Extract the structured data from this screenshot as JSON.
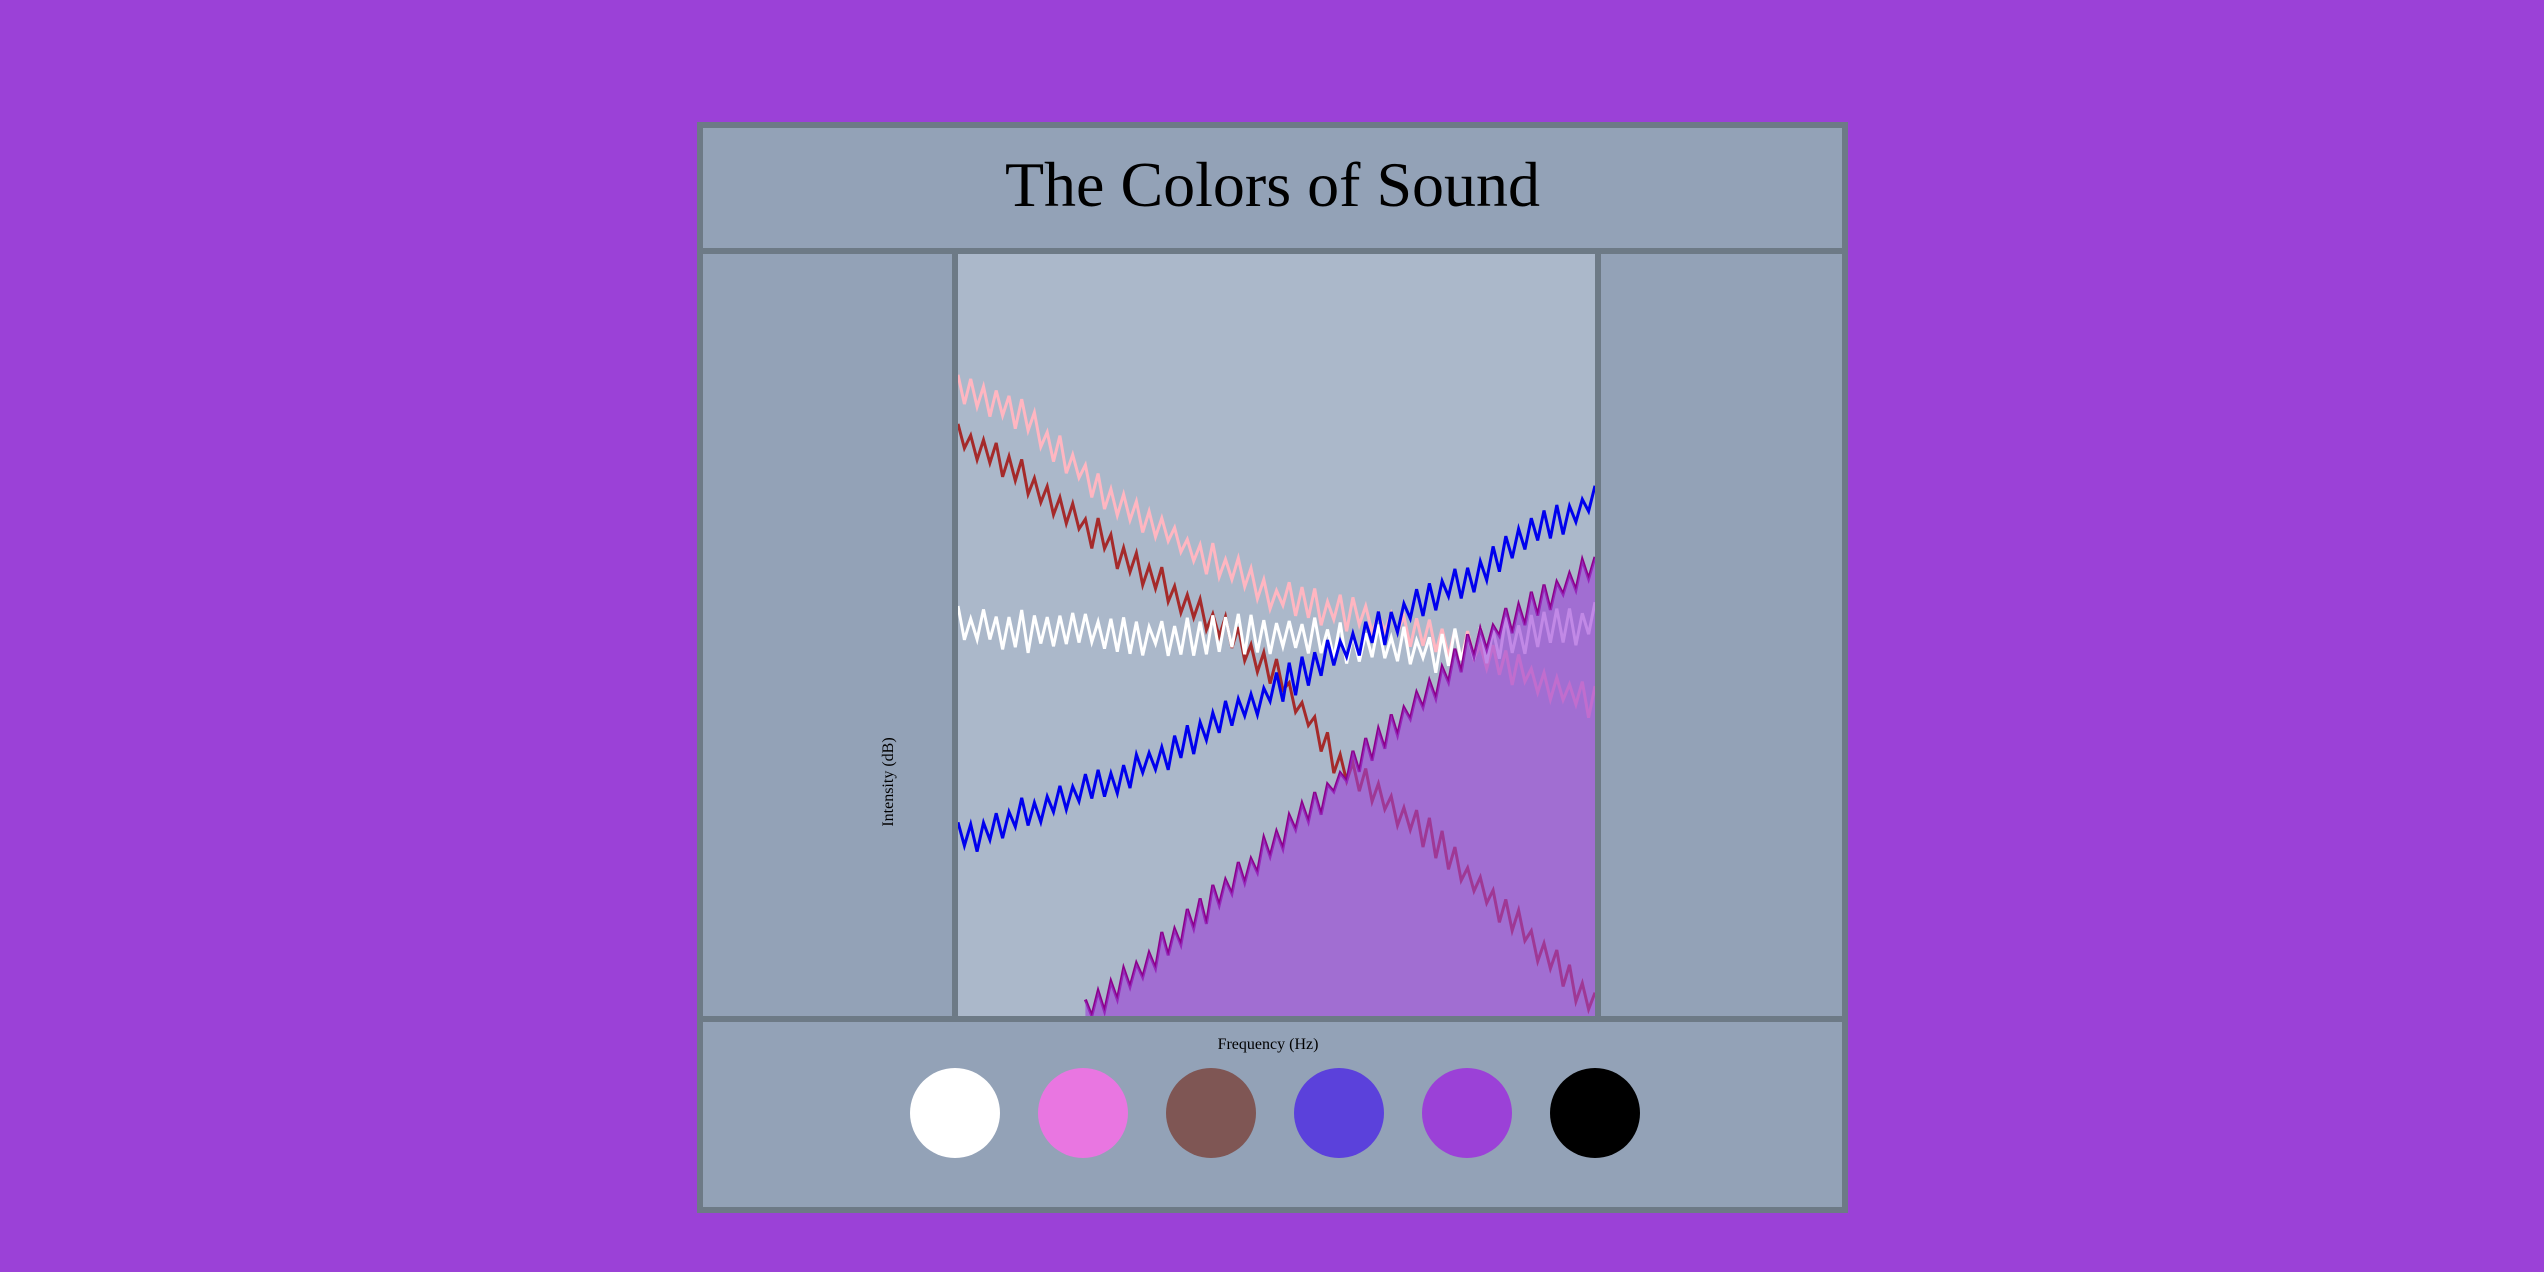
{
  "page": {
    "background": "#9b41d7",
    "title": "The Colors of Sound"
  },
  "chart_data": {
    "type": "line",
    "title": "The Colors of Sound",
    "xlabel": "Frequency (Hz)",
    "ylabel": "Intensity (dB)",
    "xlim": [
      0,
      100
    ],
    "ylim": [
      0,
      100
    ],
    "grid": false,
    "legend": "none",
    "series": [
      {
        "color": "#ffb6c1",
        "trend": [
          [
            0,
            83
          ],
          [
            10,
            79
          ],
          [
            25,
            67
          ],
          [
            50,
            55
          ],
          [
            75,
            50
          ],
          [
            100,
            41
          ]
        ],
        "jitter": 1.6,
        "seed": 3
      },
      {
        "color": "#a52a2a",
        "trend": [
          [
            0,
            76
          ],
          [
            10,
            71
          ],
          [
            25,
            61
          ],
          [
            50,
            45
          ],
          [
            60,
            33
          ],
          [
            75,
            23
          ],
          [
            100,
            1
          ]
        ],
        "jitter": 1.6,
        "seed": 7
      },
      {
        "color": "#ffffff",
        "trend": [
          [
            0,
            51
          ],
          [
            25,
            50
          ],
          [
            50,
            50
          ],
          [
            75,
            48
          ],
          [
            100,
            52
          ]
        ],
        "jitter": 2.0,
        "seed": 11
      },
      {
        "color": "#0000ee",
        "trend": [
          [
            0,
            23
          ],
          [
            25,
            31
          ],
          [
            50,
            43
          ],
          [
            75,
            55
          ],
          [
            100,
            68
          ]
        ],
        "jitter": 1.7,
        "seed": 17
      },
      {
        "color": "#8b008b",
        "trend": [
          [
            20,
            0
          ],
          [
            40,
            15
          ],
          [
            60,
            31
          ],
          [
            80,
            48
          ],
          [
            100,
            59
          ]
        ],
        "jitter": 1.5,
        "seed": 23,
        "fill": "#9b41d7",
        "fill_opacity": 0.62
      }
    ]
  },
  "legend_swatches": [
    {
      "name": "white",
      "color": "#ffffff"
    },
    {
      "name": "pink",
      "color": "#e976e1"
    },
    {
      "name": "brown",
      "color": "#7f5654"
    },
    {
      "name": "blue",
      "color": "#5b41db"
    },
    {
      "name": "purple",
      "color": "#9b41d7"
    },
    {
      "name": "black",
      "color": "#000000"
    }
  ]
}
